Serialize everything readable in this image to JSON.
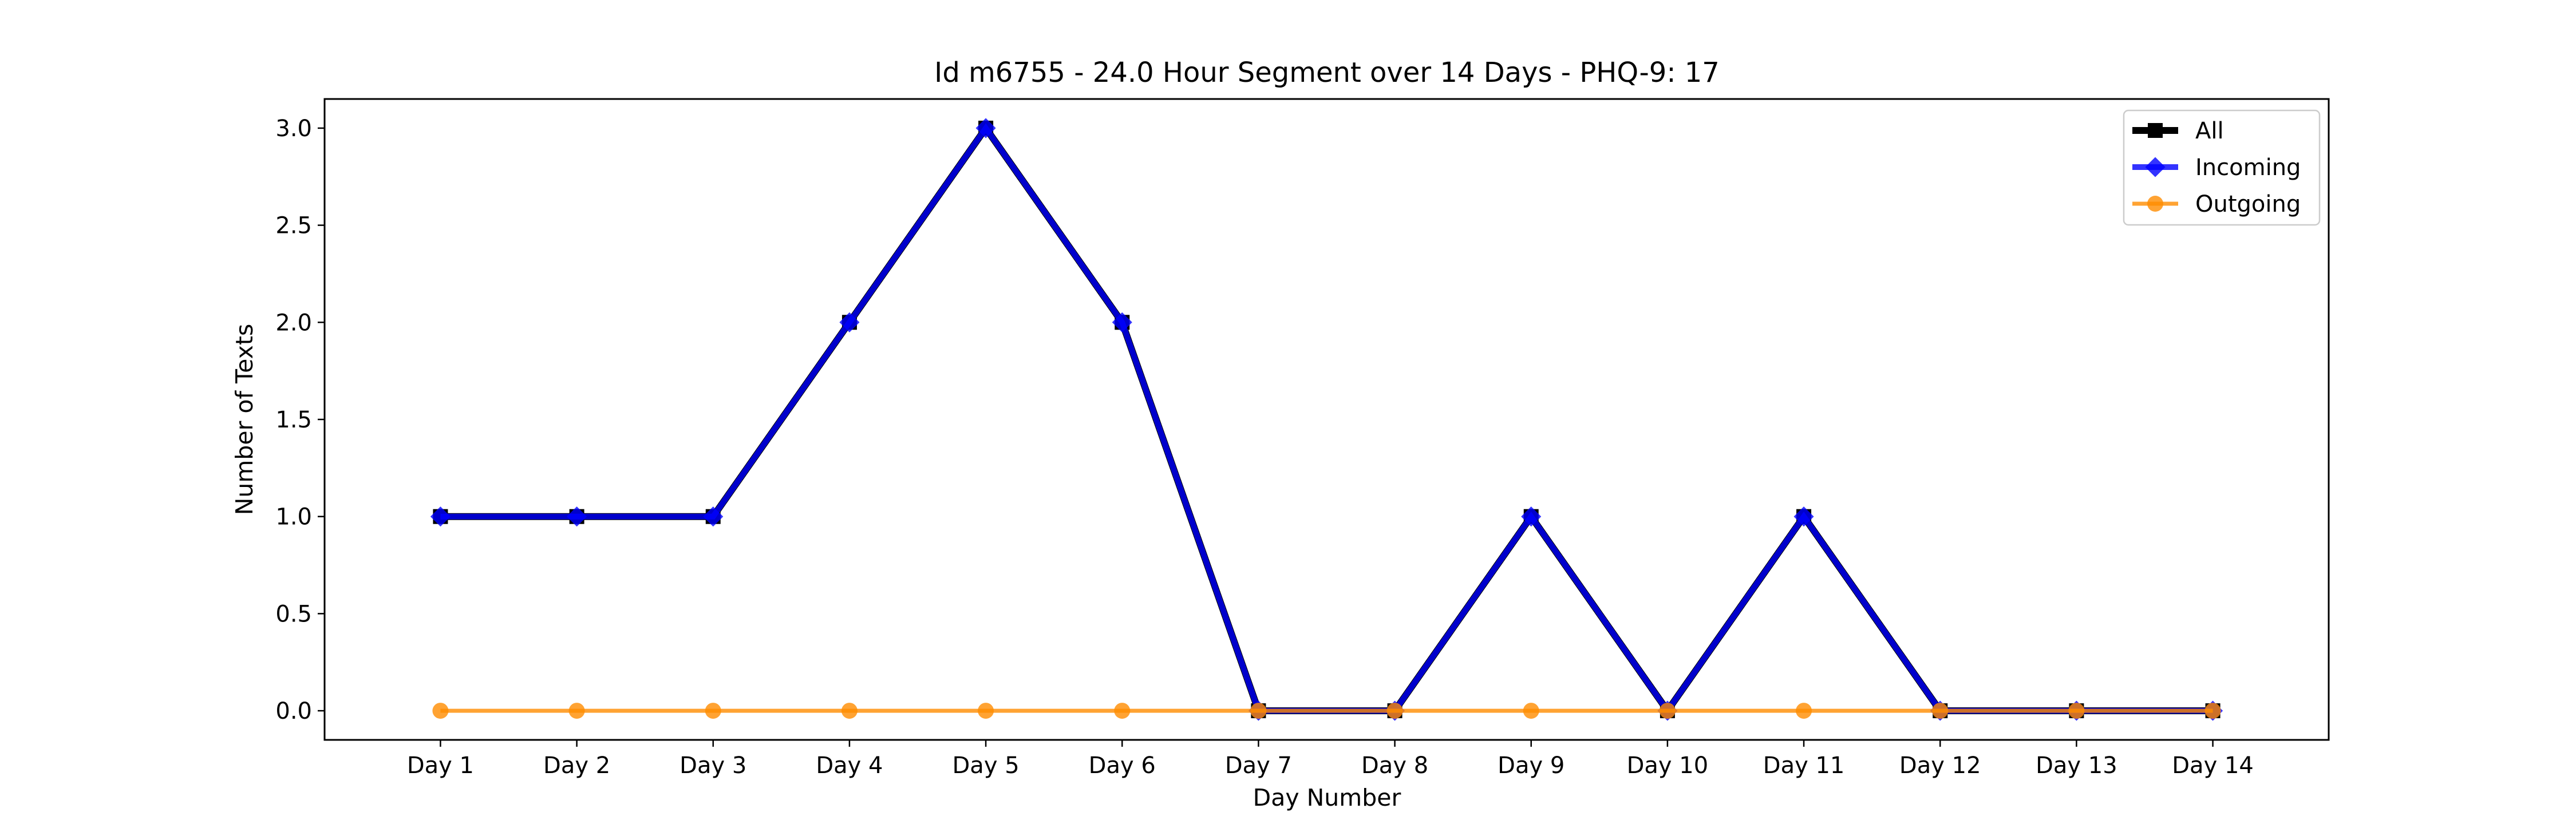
{
  "chart_data": {
    "type": "line",
    "title": "Id m6755 - 24.0 Hour Segment over 14 Days - PHQ-9: 17",
    "xlabel": "Day Number",
    "ylabel": "Number of Texts",
    "categories": [
      "Day 1",
      "Day 2",
      "Day 3",
      "Day 4",
      "Day 5",
      "Day 6",
      "Day 7",
      "Day 8",
      "Day 9",
      "Day 10",
      "Day 11",
      "Day 12",
      "Day 13",
      "Day 14"
    ],
    "ylim": [
      -0.15,
      3.15
    ],
    "yticks": [
      0.0,
      0.5,
      1.0,
      1.5,
      2.0,
      2.5,
      3.0
    ],
    "ytick_labels": [
      "0.0",
      "0.5",
      "1.0",
      "1.5",
      "2.0",
      "2.5",
      "3.0"
    ],
    "grid": false,
    "legend_position": "top-right",
    "series": [
      {
        "name": "All",
        "values": [
          1,
          1,
          1,
          2,
          3,
          2,
          0,
          0,
          1,
          0,
          1,
          0,
          0,
          0
        ],
        "color": "#000000",
        "marker": "square"
      },
      {
        "name": "Incoming",
        "values": [
          1,
          1,
          1,
          2,
          3,
          2,
          0,
          0,
          1,
          0,
          1,
          0,
          0,
          0
        ],
        "color": "#0000ff",
        "marker": "diamond"
      },
      {
        "name": "Outgoing",
        "values": [
          0,
          0,
          0,
          0,
          0,
          0,
          0,
          0,
          0,
          0,
          0,
          0,
          0,
          0
        ],
        "color": "#ff8c00",
        "marker": "circle"
      }
    ]
  }
}
